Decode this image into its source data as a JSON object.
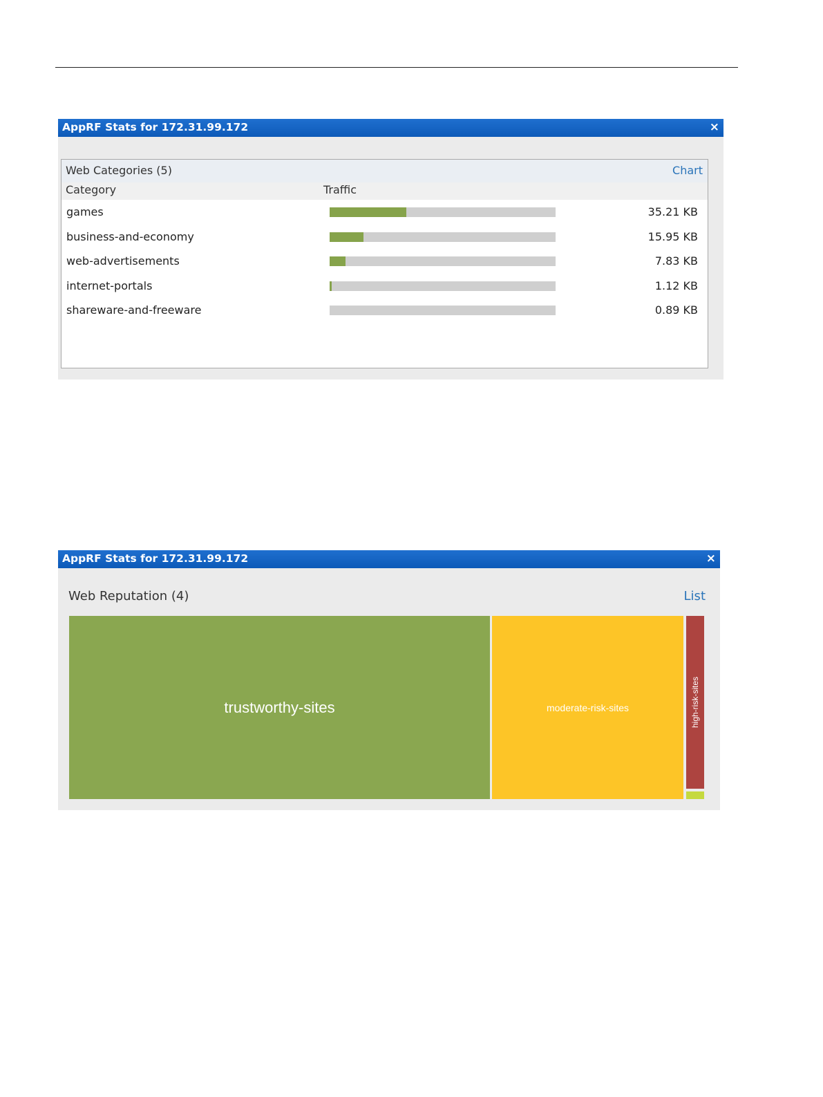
{
  "dialog_categories": {
    "title": "AppRF Stats for 172.31.99.172",
    "close_label": "×",
    "panel_title": "Web Categories (5)",
    "view_link": "Chart",
    "columns": [
      "Category",
      "Traffic"
    ],
    "rows": [
      {
        "name": "games",
        "value": "35.21 KB",
        "fraction": 0.34
      },
      {
        "name": "business-and-economy",
        "value": "15.95 KB",
        "fraction": 0.15
      },
      {
        "name": "web-advertisements",
        "value": "7.83 KB",
        "fraction": 0.07
      },
      {
        "name": "internet-portals",
        "value": "1.12 KB",
        "fraction": 0.01
      },
      {
        "name": "shareware-and-freeware",
        "value": "0.89 KB",
        "fraction": 0.0
      }
    ],
    "bar_fill_color": "#86a34b",
    "bar_track_color": "#cfcfcf"
  },
  "dialog_reputation": {
    "title": "AppRF Stats for 172.31.99.172",
    "close_label": "×",
    "panel_title": "Web Reputation (4)",
    "view_link": "List",
    "tiles": [
      {
        "label": "trustworthy-sites",
        "color": "#8aa750"
      },
      {
        "label": "moderate-risk-sites",
        "color": "#fdc527"
      },
      {
        "label": "high-risk-sites",
        "color": "#ad4440"
      },
      {
        "label": "",
        "color": "#c5d93e"
      }
    ]
  },
  "colors": {
    "titlebar": "#1565c8",
    "link": "#2a74b9"
  }
}
